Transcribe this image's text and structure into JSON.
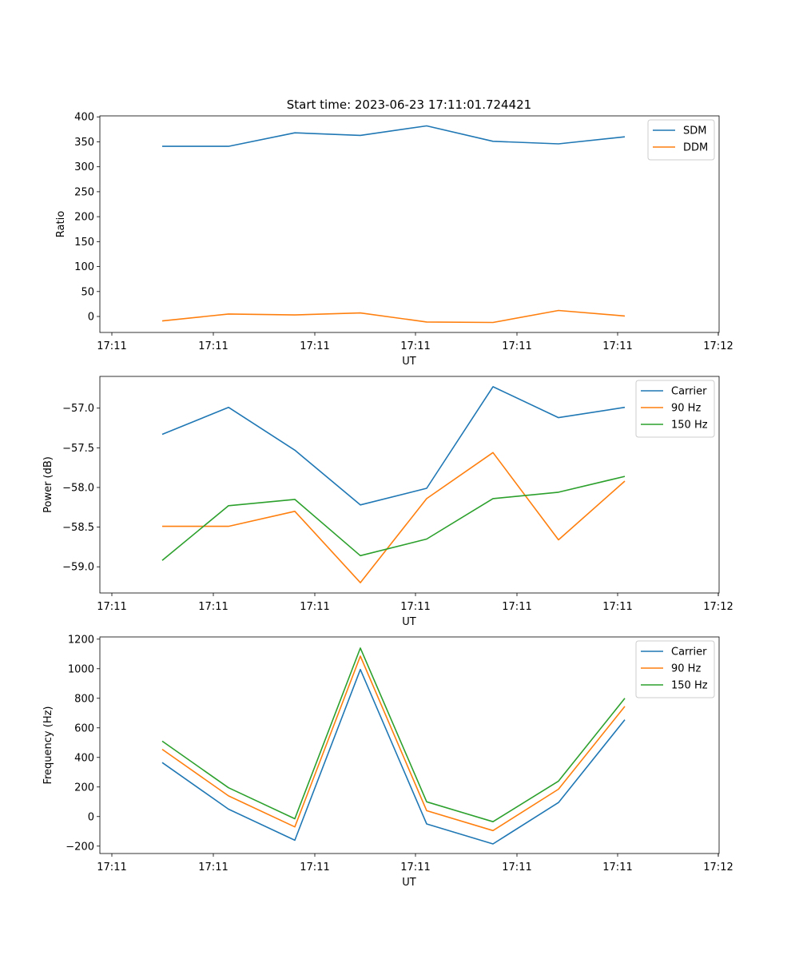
{
  "title": "Start time: 2023-06-23 17:11:01.724421",
  "colors": {
    "blue": "#1f77b4",
    "orange": "#ff7f0e",
    "green": "#2ca02c"
  },
  "chart_data": [
    {
      "type": "line",
      "xlabel": "UT",
      "ylabel": "Ratio",
      "ylim": [
        -32,
        402
      ],
      "yticks": [
        0,
        50,
        100,
        150,
        200,
        250,
        300,
        350,
        400
      ],
      "xtick_labels": [
        "17:11",
        "17:11",
        "17:11",
        "17:11",
        "17:11",
        "17:11",
        "17:11",
        "17:12"
      ],
      "legend_position": "top-right",
      "series": [
        {
          "name": "SDM",
          "color": "#1f77b4",
          "values": [
            341,
            341,
            368,
            363,
            382,
            351,
            346,
            360
          ]
        },
        {
          "name": "DDM",
          "color": "#ff7f0e",
          "values": [
            -9,
            5,
            3,
            7,
            -11,
            -12,
            12,
            1
          ]
        }
      ]
    },
    {
      "type": "line",
      "xlabel": "UT",
      "ylabel": "Power (dB)",
      "ylim": [
        -59.33,
        -56.6
      ],
      "yticks": [
        -59.0,
        -58.5,
        -58.0,
        -57.5,
        -57.0
      ],
      "ytick_labels": [
        "−59.0",
        "−58.5",
        "−58.0",
        "−57.5",
        "−57.0"
      ],
      "xtick_labels": [
        "17:11",
        "17:11",
        "17:11",
        "17:11",
        "17:11",
        "17:11",
        "17:11",
        "17:12"
      ],
      "legend_position": "top-right",
      "series": [
        {
          "name": "Carrier",
          "color": "#1f77b4",
          "values": [
            -57.33,
            -56.99,
            -57.53,
            -58.22,
            -58.01,
            -56.73,
            -57.12,
            -56.99
          ]
        },
        {
          "name": "90 Hz",
          "color": "#ff7f0e",
          "values": [
            -58.49,
            -58.49,
            -58.3,
            -59.2,
            -58.14,
            -57.56,
            -58.66,
            -57.92
          ]
        },
        {
          "name": "150 Hz",
          "color": "#2ca02c",
          "values": [
            -58.92,
            -58.23,
            -58.15,
            -58.86,
            -58.65,
            -58.14,
            -58.06,
            -57.86
          ]
        }
      ]
    },
    {
      "type": "line",
      "xlabel": "UT",
      "ylabel": "Frequency (Hz)",
      "ylim": [
        -250,
        1215
      ],
      "yticks": [
        -200,
        0,
        200,
        400,
        600,
        800,
        1000,
        1200
      ],
      "ytick_labels": [
        "−200",
        "0",
        "200",
        "400",
        "600",
        "800",
        "1000",
        "1200"
      ],
      "xtick_labels": [
        "17:11",
        "17:11",
        "17:11",
        "17:11",
        "17:11",
        "17:11",
        "17:11",
        "17:12"
      ],
      "legend_position": "top-right",
      "series": [
        {
          "name": "Carrier",
          "color": "#1f77b4",
          "values": [
            365,
            50,
            -160,
            995,
            -50,
            -185,
            95,
            655
          ]
        },
        {
          "name": "90 Hz",
          "color": "#ff7f0e",
          "values": [
            455,
            140,
            -70,
            1085,
            40,
            -95,
            185,
            745
          ]
        },
        {
          "name": "150 Hz",
          "color": "#2ca02c",
          "values": [
            510,
            195,
            -15,
            1140,
            100,
            -35,
            240,
            800
          ]
        }
      ]
    }
  ]
}
